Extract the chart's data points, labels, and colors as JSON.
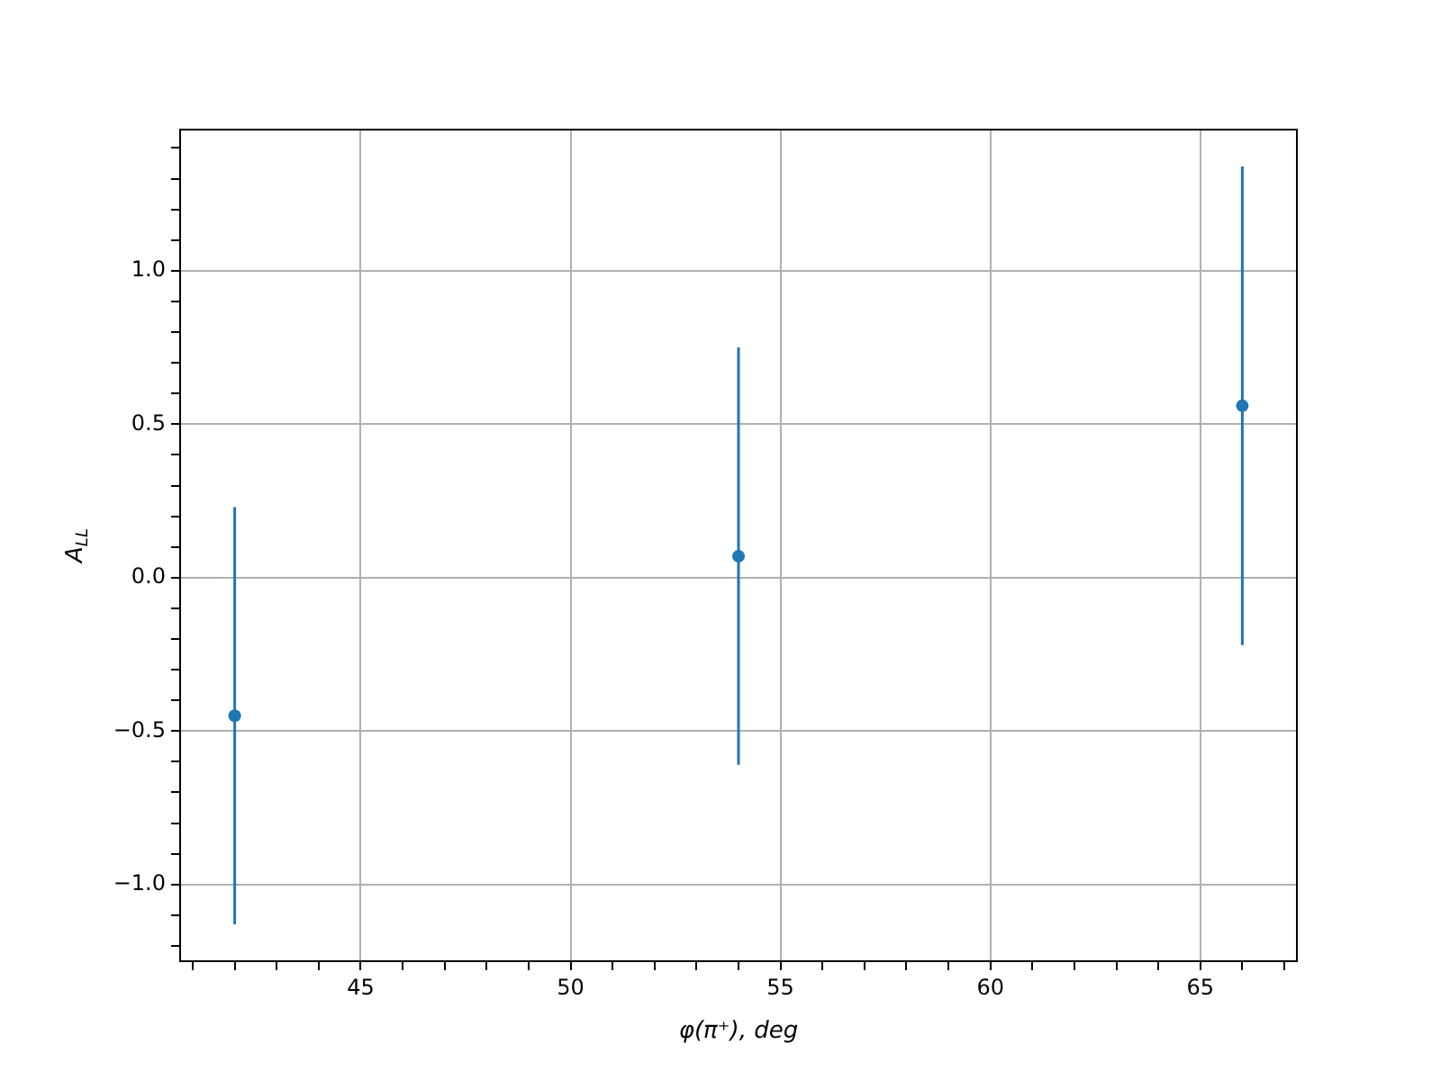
{
  "chart_data": {
    "type": "scatter",
    "xlabel": "φ(π⁺), deg",
    "ylabel": "A$_{LL}$",
    "x": [
      42,
      54,
      66
    ],
    "series": [
      {
        "color": "#1f77b4",
        "values": [
          -0.45,
          0.07,
          0.56
        ],
        "errors": [
          0.68,
          0.68,
          0.78
        ]
      }
    ],
    "xlim": [
      40.7,
      67.3
    ],
    "ylim": [
      -1.25,
      1.46
    ],
    "xticks": [
      {
        "value": 41,
        "label": null
      },
      {
        "value": 42,
        "label": null
      },
      {
        "value": 43,
        "label": null
      },
      {
        "value": 44,
        "label": null
      },
      45,
      {
        "value": 46,
        "label": null
      },
      {
        "value": 47,
        "label": null
      },
      {
        "value": 48,
        "label": null
      },
      {
        "value": 49,
        "label": null
      },
      50,
      {
        "value": 51,
        "label": null
      },
      {
        "value": 52,
        "label": null
      },
      {
        "value": 53,
        "label": null
      },
      {
        "value": 54,
        "label": null
      },
      55,
      {
        "value": 56,
        "label": null
      },
      {
        "value": 57,
        "label": null
      },
      {
        "value": 58,
        "label": null
      },
      {
        "value": 59,
        "label": null
      },
      60,
      {
        "value": 61,
        "label": null
      },
      {
        "value": 62,
        "label": null
      },
      {
        "value": 63,
        "label": null
      },
      {
        "value": 64,
        "label": null
      },
      65,
      {
        "value": 66,
        "label": null
      },
      {
        "value": 67,
        "label": null
      }
    ],
    "yticks": [
      {
        "value": -1.2,
        "label": null
      },
      {
        "value": -1.1,
        "label": null
      },
      {
        "value": -1.0,
        "label": "−1.0"
      },
      {
        "value": -0.9,
        "label": null
      },
      {
        "value": -0.8,
        "label": null
      },
      {
        "value": -0.7,
        "label": null
      },
      {
        "value": -0.6,
        "label": null
      },
      {
        "value": -0.5,
        "label": "−0.5"
      },
      {
        "value": -0.4,
        "label": null
      },
      {
        "value": -0.3,
        "label": null
      },
      {
        "value": -0.2,
        "label": null
      },
      {
        "value": -0.1,
        "label": null
      },
      {
        "value": 0,
        "label": "0.0"
      },
      {
        "value": 0.1,
        "label": null
      },
      {
        "value": 0.2,
        "label": null
      },
      {
        "value": 0.3,
        "label": null
      },
      {
        "value": 0.4,
        "label": null
      },
      {
        "value": 0.5,
        "label": "0.5"
      },
      {
        "value": 0.6,
        "label": null
      },
      {
        "value": 0.7,
        "label": null
      },
      {
        "value": 0.8,
        "label": null
      },
      {
        "value": 0.9,
        "label": null
      },
      {
        "value": 1.0,
        "label": "1.0"
      },
      {
        "value": 1.1,
        "label": null
      },
      {
        "value": 1.2,
        "label": null
      },
      {
        "value": 1.3,
        "label": null
      },
      {
        "value": 1.4,
        "label": null
      }
    ],
    "grid": true,
    "marker": "circle",
    "legend": false
  }
}
